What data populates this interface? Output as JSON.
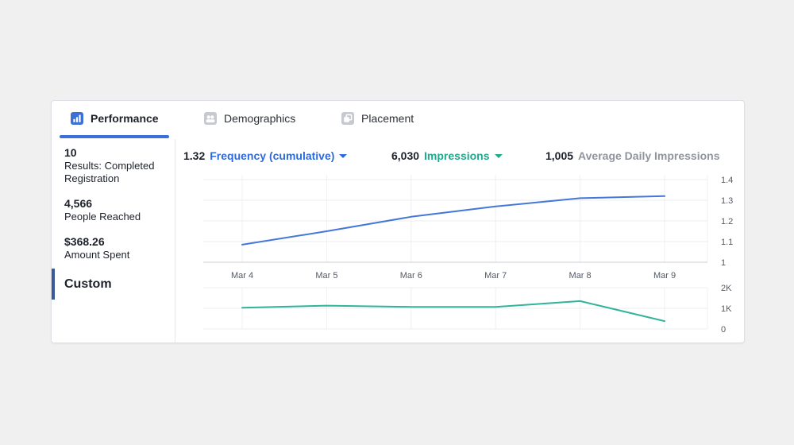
{
  "theme": {
    "accent_blue": "#3B70D8",
    "custom_bar_color": "#3B5998",
    "inactive_icon_gray": "#C4C9D2"
  },
  "tabs": [
    {
      "label": "Performance",
      "active": true
    },
    {
      "label": "Demographics",
      "active": false
    },
    {
      "label": "Placement",
      "active": false
    }
  ],
  "sidebar": {
    "metrics": [
      {
        "value": "10",
        "label": "Results: Completed Registration"
      },
      {
        "value": "4,566",
        "label": "People Reached"
      },
      {
        "value": "$368.26",
        "label": "Amount Spent"
      }
    ],
    "custom_label": "Custom"
  },
  "chart_header": {
    "metrics": [
      {
        "value": "1.32",
        "label": "Frequency (cumulative)",
        "color": "#2D6BD8",
        "has_dropdown": true
      },
      {
        "value": "6,030",
        "label": "Impressions",
        "color": "#1FA98D",
        "has_dropdown": true
      },
      {
        "value": "1,005",
        "label": "Average Daily Impressions",
        "color": "#90949C",
        "has_dropdown": false
      }
    ]
  },
  "chart_data": [
    {
      "type": "line",
      "title": "Frequency (cumulative)",
      "x": [
        "Mar 4",
        "Mar 5",
        "Mar 6",
        "Mar 7",
        "Mar 8",
        "Mar 9"
      ],
      "series": [
        {
          "name": "Frequency (cumulative)",
          "values": [
            1.085,
            1.15,
            1.22,
            1.27,
            1.31,
            1.32
          ],
          "color": "#4577D9"
        }
      ],
      "ylim": [
        1,
        1.4
      ],
      "yticks": [
        {
          "v": 1,
          "label": "1"
        },
        {
          "v": 1.1,
          "label": "1.1"
        },
        {
          "v": 1.2,
          "label": "1.2"
        },
        {
          "v": 1.3,
          "label": "1.3"
        },
        {
          "v": 1.4,
          "label": "1.4"
        }
      ],
      "grid": true,
      "legend": "none",
      "axis_side": "right"
    },
    {
      "type": "line",
      "title": "Impressions",
      "x": [
        "Mar 4",
        "Mar 5",
        "Mar 6",
        "Mar 7",
        "Mar 8",
        "Mar 9"
      ],
      "series": [
        {
          "name": "Impressions",
          "values": [
            1030,
            1130,
            1070,
            1070,
            1350,
            380
          ],
          "color": "#32B49B"
        }
      ],
      "ylim": [
        0,
        2000
      ],
      "yticks": [
        {
          "v": 0,
          "label": "0"
        },
        {
          "v": 1000,
          "label": "1K"
        },
        {
          "v": 2000,
          "label": "2K"
        }
      ],
      "grid": true,
      "legend": "none",
      "axis_side": "right"
    }
  ]
}
